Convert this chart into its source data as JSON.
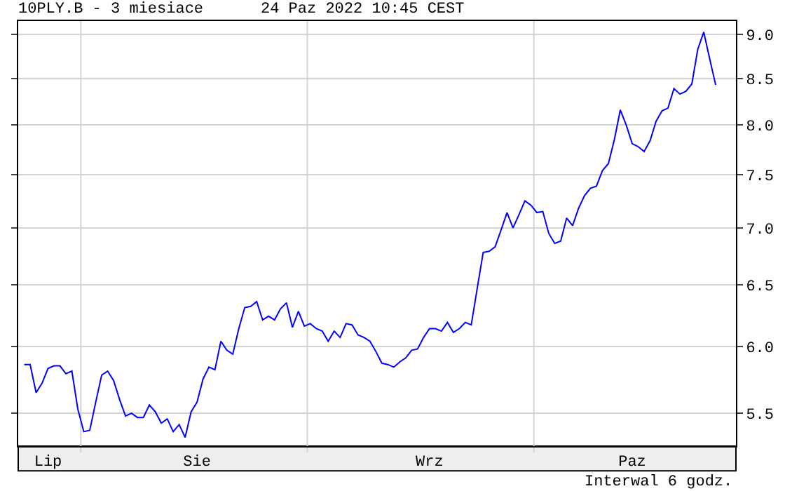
{
  "chart_data": {
    "type": "line",
    "title": "10PLY.B - 3 miesiace",
    "subtitle": "24 Paz 2022 10:45 CEST",
    "annotations": [
      "Interwal 6 godz."
    ],
    "categories": [
      null,
      null,
      null,
      null,
      "Lip",
      null,
      null,
      null,
      null,
      null,
      null,
      null,
      null,
      null,
      null,
      null,
      null,
      null,
      null,
      null,
      null,
      null,
      null,
      null,
      null,
      null,
      null,
      null,
      null,
      "Sie",
      null,
      null,
      null,
      null,
      null,
      null,
      null,
      null,
      null,
      null,
      null,
      null,
      null,
      null,
      null,
      null,
      null,
      null,
      null,
      null,
      null,
      null,
      null,
      null,
      null,
      null,
      null,
      null,
      null,
      null,
      null,
      null,
      null,
      null,
      null,
      null,
      null,
      null,
      "Wrz",
      null,
      null,
      null,
      null,
      null,
      null,
      null,
      null,
      null,
      null,
      null,
      null,
      null,
      null,
      null,
      null,
      null,
      null,
      null,
      null,
      null,
      null,
      null,
      null,
      null,
      null,
      null,
      null,
      null,
      null,
      null,
      null,
      null,
      "Paz",
      null,
      null,
      null,
      null,
      null,
      null,
      null,
      null,
      null,
      null,
      null,
      null,
      null,
      null
    ],
    "series": [
      {
        "color": "#0000ff",
        "values": [
          5.86,
          5.86,
          5.65,
          5.72,
          5.83,
          5.85,
          5.85,
          5.79,
          5.81,
          5.53,
          5.37,
          5.38,
          5.58,
          5.78,
          5.81,
          5.74,
          5.6,
          5.48,
          5.5,
          5.47,
          5.47,
          5.56,
          5.51,
          5.43,
          5.46,
          5.37,
          5.42,
          5.33,
          5.51,
          5.58,
          5.75,
          5.84,
          5.82,
          6.04,
          5.97,
          5.94,
          6.14,
          6.31,
          6.32,
          6.36,
          6.21,
          6.24,
          6.21,
          6.3,
          6.35,
          6.15,
          6.28,
          6.16,
          6.18,
          6.14,
          6.12,
          6.04,
          6.12,
          6.07,
          6.18,
          6.17,
          6.09,
          6.07,
          6.04,
          5.96,
          5.87,
          5.86,
          5.84,
          5.88,
          5.91,
          5.97,
          5.98,
          6.07,
          6.14,
          6.14,
          6.12,
          6.19,
          6.11,
          6.14,
          6.19,
          6.17,
          6.47,
          6.78,
          6.79,
          6.83,
          6.98,
          7.14,
          7.0,
          7.12,
          7.25,
          7.21,
          7.14,
          7.15,
          6.95,
          6.86,
          6.88,
          7.09,
          7.02,
          7.18,
          7.3,
          7.37,
          7.39,
          7.54,
          7.61,
          7.85,
          8.16,
          8.0,
          7.81,
          7.78,
          7.73,
          7.84,
          8.04,
          8.15,
          8.18,
          8.39,
          8.33,
          8.36,
          8.44,
          8.83,
          9.03,
          8.72,
          8.43
        ]
      }
    ],
    "log": true,
    "ylim": [
      5.27,
      9.16
    ],
    "yticks": [
      {
        "value": 5.5,
        "label": "5.5"
      },
      {
        "value": 6,
        "label": "6.0"
      },
      {
        "value": 6.5,
        "label": "6.5"
      },
      {
        "value": 7,
        "label": "7.0"
      },
      {
        "value": 7.5,
        "label": "7.5"
      },
      {
        "value": 8,
        "label": "8.0"
      },
      {
        "value": 8.5,
        "label": "8.5"
      },
      {
        "value": 9,
        "label": "9.0"
      }
    ],
    "grid": "y",
    "line_style": "solid"
  }
}
